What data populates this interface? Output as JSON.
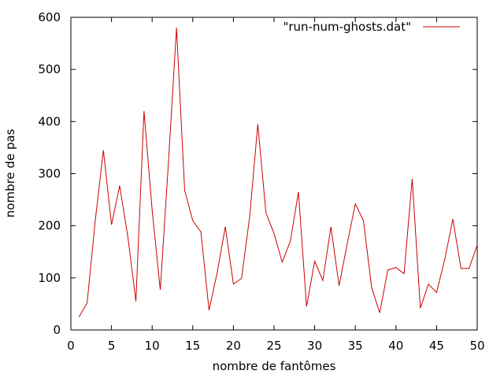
{
  "chart_data": {
    "type": "line",
    "xlabel": "nombre de fantômes",
    "ylabel": "nombre de pas",
    "xlim": [
      0,
      50
    ],
    "ylim": [
      0,
      600
    ],
    "xticks": [
      "0",
      "5",
      "10",
      "15",
      "20",
      "25",
      "30",
      "35",
      "40",
      "45",
      "50"
    ],
    "yticks": [
      "0",
      "100",
      "200",
      "300",
      "400",
      "500",
      "600"
    ],
    "legend_position": "top-right",
    "grid": false,
    "series": [
      {
        "name": "\"run-num-ghosts.dat\"",
        "color": "#cc0000",
        "x": [
          1,
          2,
          3,
          4,
          5,
          6,
          7,
          8,
          9,
          10,
          11,
          12,
          13,
          14,
          15,
          16,
          17,
          18,
          19,
          20,
          21,
          22,
          23,
          24,
          25,
          26,
          27,
          28,
          29,
          30,
          31,
          32,
          33,
          34,
          35,
          36,
          37,
          38,
          39,
          40,
          41,
          42,
          43,
          44,
          45,
          46,
          47,
          48,
          49,
          50
        ],
        "y": [
          25,
          52,
          210,
          345,
          202,
          277,
          180,
          55,
          420,
          230,
          77,
          320,
          580,
          268,
          210,
          188,
          38,
          110,
          198,
          88,
          99,
          217,
          395,
          225,
          185,
          130,
          170,
          265,
          45,
          132,
          95,
          198,
          85,
          165,
          242,
          210,
          82,
          33,
          115,
          120,
          108,
          290,
          42,
          88,
          72,
          135,
          213,
          118,
          118,
          163
        ]
      }
    ]
  }
}
